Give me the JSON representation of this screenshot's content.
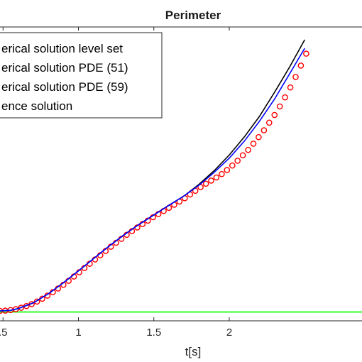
{
  "chart_data": {
    "type": "line",
    "title": "Perimeter",
    "xlabel": "t[s]",
    "ylabel": "",
    "xlim": [
      0.48,
      2.88
    ],
    "ylim": [
      0,
      1
    ],
    "xticks": [
      0.5,
      1,
      1.5,
      2
    ],
    "xtick_labels": [
      ".5",
      "1",
      "1.5",
      "2"
    ],
    "grid": false,
    "legend_position": "top-left",
    "series": [
      {
        "name": "erical solution level set",
        "style": "line",
        "color": "#000000",
        "x": [
          0.48,
          0.55,
          0.6,
          0.7,
          0.8,
          0.9,
          1.0,
          1.1,
          1.2,
          1.3,
          1.4,
          1.5,
          1.6,
          1.7,
          1.8,
          1.9,
          2.0,
          2.1,
          2.2,
          2.3,
          2.4,
          2.5
        ],
        "y": [
          0.0,
          0.002,
          0.008,
          0.028,
          0.06,
          0.099,
          0.141,
          0.184,
          0.227,
          0.267,
          0.304,
          0.338,
          0.372,
          0.405,
          0.446,
          0.494,
          0.549,
          0.613,
          0.685,
          0.77,
          0.859,
          0.955
        ]
      },
      {
        "name": "erical solution PDE (51)",
        "style": "line",
        "color": "#0000ff",
        "x": [
          0.48,
          0.55,
          0.6,
          0.7,
          0.8,
          0.9,
          1.0,
          1.1,
          1.2,
          1.3,
          1.4,
          1.5,
          1.6,
          1.7,
          1.8,
          1.9,
          2.0,
          2.1,
          2.2,
          2.3,
          2.4,
          2.5
        ],
        "y": [
          0.0,
          0.002,
          0.008,
          0.028,
          0.06,
          0.099,
          0.141,
          0.184,
          0.227,
          0.267,
          0.304,
          0.338,
          0.372,
          0.405,
          0.443,
          0.488,
          0.538,
          0.598,
          0.668,
          0.746,
          0.835,
          0.925
        ]
      },
      {
        "name": "erical solution PDE (59)",
        "style": "markers",
        "marker": "circle",
        "color": "#ff0000",
        "x": [
          0.48,
          0.515,
          0.55,
          0.585,
          0.62,
          0.655,
          0.69,
          0.725,
          0.76,
          0.795,
          0.83,
          0.865,
          0.9,
          0.935,
          0.97,
          1.005,
          1.04,
          1.075,
          1.11,
          1.145,
          1.18,
          1.215,
          1.25,
          1.285,
          1.32,
          1.355,
          1.39,
          1.425,
          1.46,
          1.495,
          1.53,
          1.565,
          1.6,
          1.635,
          1.67,
          1.705,
          1.74,
          1.775,
          1.81,
          1.845,
          1.88,
          1.915,
          1.95,
          1.985,
          2.02,
          2.055,
          2.09,
          2.125,
          2.16,
          2.195,
          2.23,
          2.265,
          2.3,
          2.335,
          2.37,
          2.405,
          2.44,
          2.475,
          2.51
        ],
        "y": [
          0.0,
          0.001,
          0.003,
          0.006,
          0.011,
          0.017,
          0.024,
          0.033,
          0.043,
          0.054,
          0.066,
          0.079,
          0.092,
          0.106,
          0.121,
          0.136,
          0.151,
          0.166,
          0.181,
          0.196,
          0.211,
          0.226,
          0.24,
          0.254,
          0.268,
          0.281,
          0.294,
          0.306,
          0.318,
          0.33,
          0.341,
          0.352,
          0.363,
          0.374,
          0.385,
          0.397,
          0.41,
          0.423,
          0.436,
          0.448,
          0.459,
          0.47,
          0.482,
          0.496,
          0.512,
          0.529,
          0.548,
          0.567,
          0.589,
          0.612,
          0.636,
          0.663,
          0.69,
          0.72,
          0.752,
          0.787,
          0.824,
          0.864,
          0.906
        ]
      },
      {
        "name": "ence solution",
        "style": "line",
        "color": "#00ff00",
        "x": [
          0.48,
          2.88
        ],
        "y": [
          -0.004,
          -0.004
        ]
      }
    ]
  }
}
